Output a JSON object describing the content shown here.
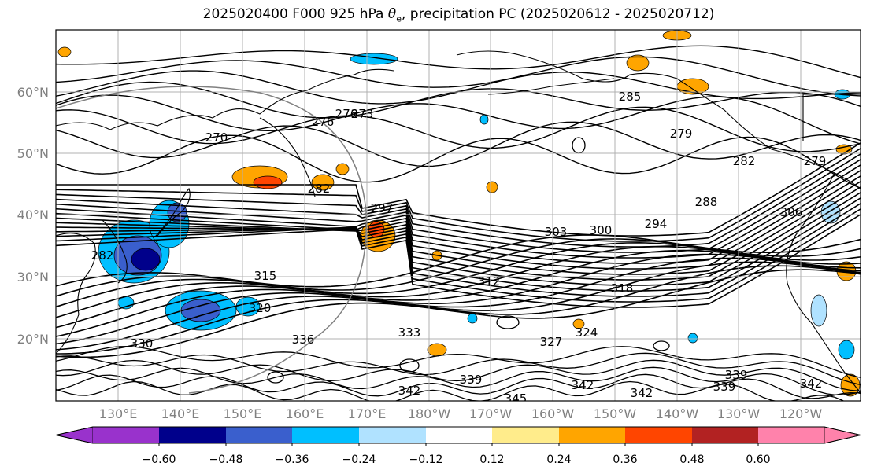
{
  "title": {
    "prefix": "2025020400 F000 925 hPa ",
    "symbol": "θ",
    "subscript": "e",
    "suffix": ", precipitation PC (2025020612 - 2025020712)"
  },
  "map": {
    "lat_labels": [
      "60°N",
      "50°N",
      "40°N",
      "30°N",
      "20°N"
    ],
    "lon_labels": [
      "130°E",
      "140°E",
      "150°E",
      "160°E",
      "170°E",
      "180°W",
      "170°W",
      "160°W",
      "150°W",
      "140°W",
      "130°W",
      "120°W"
    ],
    "contour_labels": [
      "270",
      "276",
      "273",
      "282",
      "279",
      "285",
      "282",
      "279",
      "288",
      "294",
      "297",
      "300",
      "303",
      "306",
      "312",
      "315",
      "318",
      "320",
      "324",
      "327",
      "330",
      "333",
      "336",
      "339",
      "342",
      "345",
      "339",
      "342",
      "342",
      "339",
      "342",
      "276",
      "282"
    ],
    "colors": {
      "land_outline": "#000000",
      "grid": "#b0b0b0",
      "ring": "#808080"
    }
  },
  "colorbar": {
    "ticks": [
      "−0.60",
      "−0.48",
      "−0.36",
      "−0.24",
      "−0.12",
      "0.12",
      "0.24",
      "0.36",
      "0.48",
      "0.60"
    ],
    "colors": [
      "#9932cc",
      "#00008b",
      "#3a5fcd",
      "#00bfff",
      "#b0e2ff",
      "#ffffff",
      "#ffec8b",
      "#ffa500",
      "#ff4500",
      "#b22222",
      "#ff82ab"
    ]
  }
}
